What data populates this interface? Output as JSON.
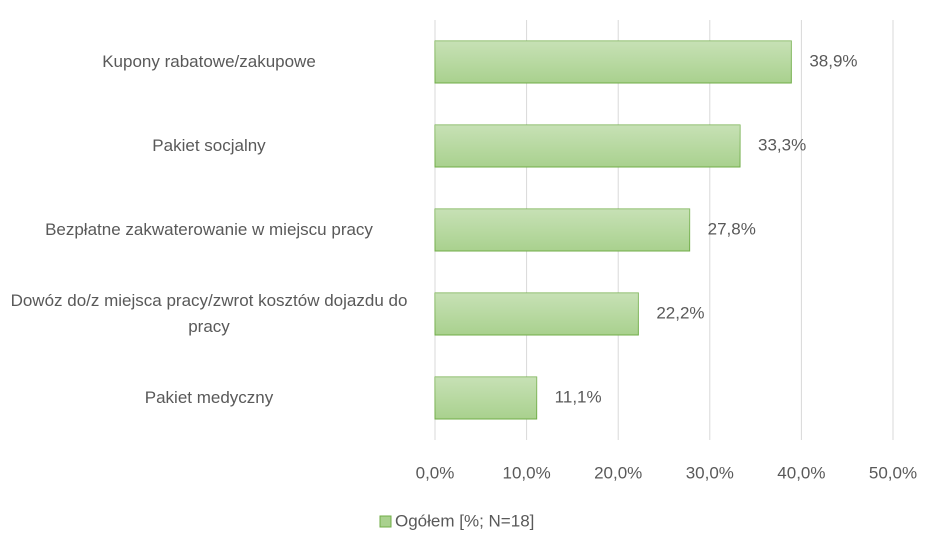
{
  "chart_data": {
    "type": "barh",
    "categories": [
      "Kupony rabatowe/zakupowe",
      "Pakiet socjalny",
      "Bezpłatne zakwaterowanie w miejscu pracy",
      "Dowóz do/z miejsca pracy/zwrot kosztów dojazdu do pracy",
      "Pakiet medyczny"
    ],
    "series": [
      {
        "name": "Ogółem [%; N=18]",
        "color": "#a9d18e",
        "edge_color": "#70ad47",
        "values": [
          38.9,
          33.3,
          27.8,
          22.2,
          11.1
        ],
        "value_labels": [
          "38,9%",
          "33,3%",
          "27,8%",
          "22,2%",
          "11,1%"
        ]
      }
    ],
    "xlim": [
      0,
      50
    ],
    "xticks": [
      {
        "value": 0,
        "label": "0,0%"
      },
      {
        "value": 10,
        "label": "10,0%"
      },
      {
        "value": 20,
        "label": "20,0%"
      },
      {
        "value": 30,
        "label": "30,0%"
      },
      {
        "value": 40,
        "label": "40,0%"
      },
      {
        "value": 50,
        "label": "50,0%"
      }
    ],
    "grid": true,
    "legend": "bottom"
  }
}
